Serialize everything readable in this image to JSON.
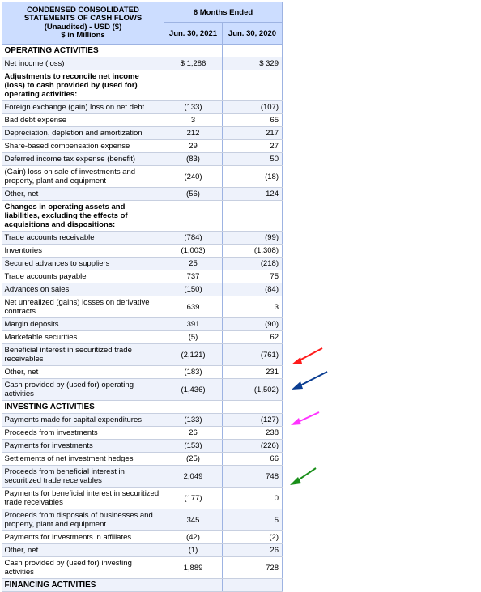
{
  "header": {
    "title": "CONDENSED CONSOLIDATED STATEMENTS OF CASH FLOWS (Unaudited) - USD ($) $ in Millions",
    "title_lines": [
      "CONDENSED CONSOLIDATED",
      "STATEMENTS OF CASH FLOWS",
      "(Unaudited) - USD ($)",
      "$ in Millions"
    ],
    "period": "6 Months Ended",
    "col1": "Jun. 30, 2021",
    "col2": "Jun. 30, 2020"
  },
  "rows": [
    {
      "label": "OPERATING ACTIVITIES",
      "v1": "",
      "v2": "",
      "kind": "section"
    },
    {
      "label": "Net income (loss)",
      "v1": "$ 1,286",
      "v2": "$ 329"
    },
    {
      "label": "Adjustments to reconcile net income (loss) to cash provided by (used for) operating activities:",
      "v1": "",
      "v2": "",
      "kind": "subhead",
      "h": "tall3"
    },
    {
      "label": "Foreign exchange (gain) loss on net debt",
      "v1": "(133)",
      "v2": "(107)"
    },
    {
      "label": "Bad debt expense",
      "v1": "3",
      "v2": "65"
    },
    {
      "label": "Depreciation, depletion and amortization",
      "v1": "212",
      "v2": "217"
    },
    {
      "label": "Share-based compensation expense",
      "v1": "29",
      "v2": "27"
    },
    {
      "label": "Deferred income tax expense (benefit)",
      "v1": "(83)",
      "v2": "50"
    },
    {
      "label": "(Gain) loss on sale of investments and property, plant and equipment",
      "v1": "(240)",
      "v2": "(18)",
      "h": "tall"
    },
    {
      "label": "Other, net",
      "v1": "(56)",
      "v2": "124"
    },
    {
      "label": "Changes in operating assets and liabilities, excluding the effects of acquisitions and dispositions:",
      "v1": "",
      "v2": "",
      "kind": "subhead",
      "h": "tall3"
    },
    {
      "label": "Trade accounts receivable",
      "v1": "(784)",
      "v2": "(99)"
    },
    {
      "label": "Inventories",
      "v1": "(1,003)",
      "v2": "(1,308)"
    },
    {
      "label": "Secured advances to suppliers",
      "v1": "25",
      "v2": "(218)"
    },
    {
      "label": "Trade accounts payable",
      "v1": "737",
      "v2": "75"
    },
    {
      "label": "Advances on sales",
      "v1": "(150)",
      "v2": "(84)"
    },
    {
      "label": "Net unrealized (gains) losses on derivative contracts",
      "v1": "639",
      "v2": "3",
      "h": "tall"
    },
    {
      "label": "Margin deposits",
      "v1": "391",
      "v2": "(90)"
    },
    {
      "label": "Marketable securities",
      "v1": "(5)",
      "v2": "62"
    },
    {
      "label": "Beneficial interest in securitized trade receivables",
      "v1": "(2,121)",
      "v2": "(761)",
      "h": "tall"
    },
    {
      "label": "Other, net",
      "v1": "(183)",
      "v2": "231"
    },
    {
      "label": "Cash provided by (used for) operating activities",
      "v1": "(1,436)",
      "v2": "(1,502)",
      "h": "tall"
    },
    {
      "label": "INVESTING ACTIVITIES",
      "v1": "",
      "v2": "",
      "kind": "section"
    },
    {
      "label": "Payments made for capital expenditures",
      "v1": "(133)",
      "v2": "(127)"
    },
    {
      "label": "Proceeds from investments",
      "v1": "26",
      "v2": "238"
    },
    {
      "label": "Payments for investments",
      "v1": "(153)",
      "v2": "(226)"
    },
    {
      "label": "Settlements of net investment hedges",
      "v1": "(25)",
      "v2": "66"
    },
    {
      "label": "Proceeds from beneficial interest in securitized trade receivables",
      "v1": "2,049",
      "v2": "748",
      "h": "tall"
    },
    {
      "label": "Payments for beneficial interest in securitized trade receivables",
      "v1": "(177)",
      "v2": "0",
      "h": "tall"
    },
    {
      "label": "Proceeds from disposals of businesses and property, plant and equipment",
      "v1": "345",
      "v2": "5",
      "h": "tall"
    },
    {
      "label": "Payments for investments in affiliates",
      "v1": "(42)",
      "v2": "(2)"
    },
    {
      "label": "Other, net",
      "v1": "(1)",
      "v2": "26"
    },
    {
      "label": "Cash provided by (used for) investing activities",
      "v1": "1,889",
      "v2": "728",
      "h": "tall"
    },
    {
      "label": "FINANCING ACTIVITIES",
      "v1": "",
      "v2": "",
      "kind": "section"
    }
  ],
  "annotations": {
    "arrow_colors": [
      "#ff1a1a",
      "#0a3d91",
      "#ff33ff",
      "#1a8f1a"
    ],
    "arrow_icons": [
      "red-arrow-icon",
      "blue-arrow-icon",
      "magenta-arrow-icon",
      "green-arrow-icon"
    ]
  }
}
